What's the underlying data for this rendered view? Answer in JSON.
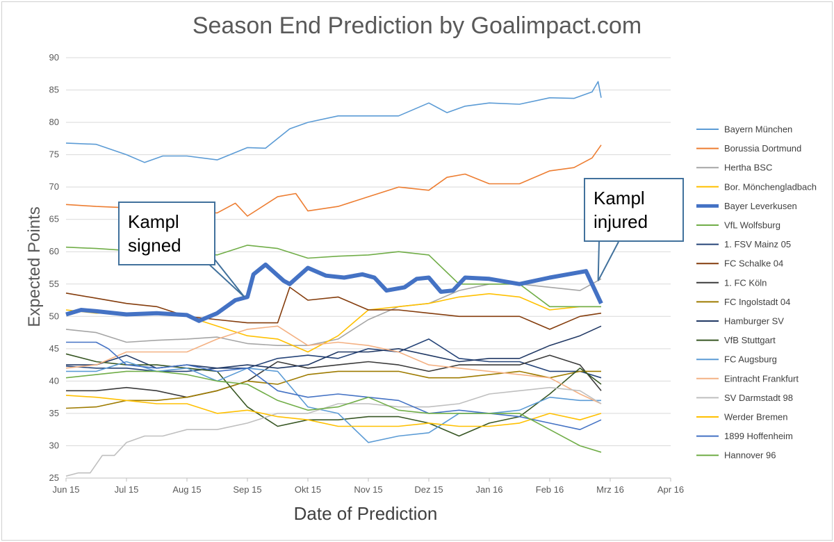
{
  "chart_data": {
    "type": "line",
    "title": "Season End Prediction by Goalimpact.com",
    "xlabel": "Date of Prediction",
    "ylabel": "Expected Points",
    "ylim": [
      25,
      90
    ],
    "yticks": [
      25,
      30,
      35,
      40,
      45,
      50,
      55,
      60,
      65,
      70,
      75,
      80,
      85,
      90
    ],
    "x_tick_labels": [
      "Jun 15",
      "Jul 15",
      "Aug 15",
      "Sep 15",
      "Okt 15",
      "Nov 15",
      "Dez 15",
      "Jan 16",
      "Feb 16",
      "Mrz 16",
      "Apr 16"
    ],
    "x_unit": "months since Jun 15",
    "grid": "horizontal",
    "legend_position": "right",
    "annotations": [
      {
        "text_line1": "Kampl",
        "text_line2": "signed",
        "points_to": [
          2.95,
          53
        ]
      },
      {
        "text_line1": "Kampl",
        "text_line2": "injured",
        "points_to": [
          8.8,
          55.5
        ]
      }
    ],
    "series": [
      {
        "name": "Bayern München",
        "color": "#5b9bd5",
        "width": 1.6,
        "x": [
          0,
          0.5,
          1,
          1.3,
          1.6,
          2,
          2.5,
          3,
          3.3,
          3.7,
          4,
          4.5,
          5,
          5.5,
          6,
          6.3,
          6.6,
          7,
          7.5,
          8,
          8.4,
          8.7,
          8.8,
          8.85
        ],
        "y": [
          76.8,
          76.6,
          75.0,
          73.8,
          74.8,
          74.8,
          74.2,
          76.1,
          76.0,
          79.0,
          80.0,
          81.0,
          81.0,
          81.0,
          83.0,
          81.5,
          82.5,
          83.0,
          82.8,
          83.8,
          83.7,
          84.7,
          86.3,
          83.8
        ]
      },
      {
        "name": "Borussia Dortmund",
        "color": "#ed7d31",
        "width": 1.6,
        "x": [
          0,
          0.5,
          1,
          1.5,
          2,
          2.5,
          2.8,
          3,
          3.5,
          3.8,
          4,
          4.5,
          5,
          5.5,
          6,
          6.3,
          6.6,
          7,
          7.5,
          8,
          8.4,
          8.7,
          8.85
        ],
        "y": [
          67.3,
          67.0,
          66.8,
          66.5,
          66.2,
          66.0,
          67.5,
          65.5,
          68.5,
          69.0,
          66.3,
          67.0,
          68.5,
          70.0,
          69.5,
          71.5,
          72.0,
          70.5,
          70.5,
          72.5,
          73.0,
          74.5,
          76.5
        ]
      },
      {
        "name": "Hertha BSC",
        "color": "#a5a5a5",
        "width": 1.6,
        "x": [
          0,
          0.5,
          1,
          1.5,
          2,
          2.5,
          3,
          3.5,
          4,
          4.5,
          5,
          5.5,
          6,
          6.5,
          7,
          7.5,
          8,
          8.5,
          8.85
        ],
        "y": [
          48.0,
          47.5,
          46.0,
          46.3,
          46.5,
          46.8,
          45.8,
          45.5,
          45.5,
          46.5,
          49.5,
          51.5,
          52.0,
          54.0,
          55.0,
          55.0,
          54.5,
          54.0,
          55.8
        ]
      },
      {
        "name": "Bor. Mönchengladbach",
        "color": "#ffc000",
        "width": 1.6,
        "x": [
          0,
          0.5,
          1,
          1.5,
          2,
          2.5,
          3,
          3.5,
          4,
          4.5,
          5,
          5.5,
          6,
          6.5,
          7,
          7.5,
          8,
          8.5,
          8.85
        ],
        "y": [
          51.0,
          50.5,
          50.5,
          50.5,
          50.0,
          48.5,
          47.0,
          46.5,
          44.5,
          47.0,
          51.0,
          51.5,
          52.0,
          53.0,
          53.5,
          53.0,
          51.0,
          51.5,
          51.5
        ]
      },
      {
        "name": "Bayer Leverkusen",
        "color": "#4472c4",
        "width": 6,
        "x": [
          0,
          0.25,
          0.5,
          1,
          1.5,
          2,
          2.2,
          2.5,
          2.8,
          3,
          3.1,
          3.3,
          3.6,
          3.7,
          4,
          4.3,
          4.6,
          4.9,
          5.1,
          5.3,
          5.6,
          5.8,
          6,
          6.2,
          6.4,
          6.6,
          7,
          7.5,
          8,
          8.3,
          8.6,
          8.85
        ],
        "y": [
          50.3,
          51.0,
          50.8,
          50.3,
          50.5,
          50.2,
          49.3,
          50.5,
          52.5,
          53.0,
          56.5,
          58.0,
          55.5,
          55.0,
          57.5,
          56.3,
          56.0,
          56.5,
          56.0,
          54.0,
          54.5,
          55.8,
          56.0,
          53.8,
          54.0,
          56.0,
          55.8,
          55.0,
          56.0,
          56.5,
          57.0,
          52.0
        ]
      },
      {
        "name": "VfL Wolfsburg",
        "color": "#70ad47",
        "width": 1.6,
        "x": [
          0,
          0.5,
          1,
          1.5,
          2,
          2.5,
          3,
          3.5,
          4,
          4.5,
          5,
          5.5,
          6,
          6.5,
          7,
          7.5,
          8,
          8.5,
          8.85
        ],
        "y": [
          60.7,
          60.5,
          60.2,
          60.0,
          60.0,
          59.5,
          61.0,
          60.5,
          59.0,
          59.3,
          59.5,
          60.0,
          59.5,
          55.0,
          55.0,
          55.0,
          51.5,
          51.5,
          51.5
        ]
      },
      {
        "name": "1. FSV Mainz 05",
        "color": "#264478",
        "width": 1.6,
        "x": [
          0,
          0.5,
          1,
          1.5,
          2,
          2.5,
          3,
          3.5,
          4,
          4.5,
          5,
          5.5,
          6,
          6.5,
          7,
          7.5,
          8,
          8.5,
          8.85
        ],
        "y": [
          42.3,
          42.0,
          42.0,
          41.5,
          41.5,
          42.0,
          42.0,
          43.5,
          44.0,
          43.5,
          45.0,
          44.5,
          46.5,
          43.5,
          43.0,
          43.0,
          41.5,
          41.5,
          40.5
        ]
      },
      {
        "name": "FC Schalke 04",
        "color": "#843c0c",
        "width": 1.6,
        "x": [
          0,
          0.5,
          1,
          1.5,
          2,
          2.5,
          3,
          3.5,
          3.7,
          4,
          4.5,
          5,
          5.5,
          6,
          6.5,
          7,
          7.5,
          8,
          8.5,
          8.85
        ],
        "y": [
          53.6,
          52.8,
          52.0,
          51.5,
          50.0,
          49.5,
          49.0,
          49.0,
          54.5,
          52.5,
          53.0,
          51.0,
          51.0,
          50.5,
          50.0,
          50.0,
          50.0,
          48.0,
          50.0,
          50.5
        ]
      },
      {
        "name": "1. FC Köln",
        "color": "#3a3a3a",
        "width": 1.6,
        "x": [
          0,
          0.5,
          1,
          1.5,
          2,
          2.5,
          3,
          3.5,
          4,
          4.5,
          5,
          5.5,
          6,
          6.5,
          7,
          7.5,
          8,
          8.5,
          8.85
        ],
        "y": [
          38.5,
          38.5,
          39.0,
          38.5,
          37.5,
          38.5,
          40.0,
          43.0,
          42.0,
          42.5,
          43.0,
          42.5,
          41.5,
          42.5,
          42.5,
          42.5,
          44.0,
          42.5,
          38.5
        ]
      },
      {
        "name": "FC Ingolstadt 04",
        "color": "#9e7b00",
        "width": 1.6,
        "x": [
          0,
          0.5,
          1,
          1.5,
          2,
          2.5,
          3,
          3.5,
          4,
          4.5,
          5,
          5.5,
          6,
          6.5,
          7,
          7.5,
          8,
          8.5,
          8.85
        ],
        "y": [
          35.8,
          36.0,
          37.0,
          37.0,
          37.5,
          38.5,
          40.0,
          39.5,
          41.0,
          41.5,
          41.5,
          41.5,
          40.5,
          40.5,
          41.0,
          41.5,
          40.5,
          41.5,
          41.5
        ]
      },
      {
        "name": "Hamburger SV",
        "color": "#203864",
        "width": 1.6,
        "x": [
          0,
          0.5,
          1,
          1.5,
          2,
          2.5,
          3,
          3.5,
          4,
          4.5,
          5,
          5.5,
          6,
          6.5,
          7,
          7.5,
          8,
          8.5,
          8.85
        ],
        "y": [
          42.5,
          42.5,
          44.0,
          42.0,
          42.5,
          42.0,
          42.5,
          42.0,
          42.5,
          44.5,
          44.5,
          45.0,
          44.0,
          43.0,
          43.5,
          43.5,
          45.5,
          47.0,
          48.5
        ]
      },
      {
        "name": "VfB Stuttgart",
        "color": "#375623",
        "width": 1.6,
        "x": [
          0,
          0.5,
          1,
          1.5,
          2,
          2.5,
          3,
          3.5,
          4,
          4.5,
          5,
          5.5,
          6,
          6.5,
          7,
          7.5,
          8,
          8.5,
          8.85
        ],
        "y": [
          44.2,
          43.0,
          42.5,
          42.5,
          42.0,
          41.5,
          36.0,
          33.0,
          34.0,
          34.0,
          34.5,
          34.5,
          33.5,
          31.5,
          33.5,
          34.5,
          38.0,
          42.0,
          39.5
        ]
      },
      {
        "name": "FC Augsburg",
        "color": "#5b9bd5",
        "width": 1.6,
        "x": [
          0,
          0.5,
          1,
          1.5,
          2,
          2.5,
          3,
          3.5,
          4,
          4.5,
          5,
          5.5,
          6,
          6.5,
          7,
          7.5,
          8,
          8.5,
          8.85
        ],
        "y": [
          41.5,
          41.5,
          43.0,
          41.5,
          42.0,
          40.0,
          42.0,
          41.5,
          36.0,
          35.0,
          30.5,
          31.5,
          32.0,
          35.0,
          35.0,
          35.5,
          37.5,
          37.0,
          37.0
        ]
      },
      {
        "name": "Eintracht Frankfurt",
        "color": "#f4b183",
        "width": 1.6,
        "x": [
          0,
          0.5,
          1,
          1.5,
          2,
          2.5,
          3,
          3.5,
          4,
          4.5,
          5,
          5.5,
          6,
          6.5,
          7,
          7.5,
          8,
          8.5,
          8.85
        ],
        "y": [
          42.0,
          42.5,
          44.5,
          44.5,
          44.5,
          46.5,
          48.0,
          48.5,
          45.5,
          46.0,
          45.5,
          44.5,
          42.5,
          42.0,
          41.5,
          41.0,
          40.5,
          38.0,
          36.5
        ]
      },
      {
        "name": "SV Darmstadt 98",
        "color": "#bfbfbf",
        "width": 1.6,
        "x": [
          0,
          0.2,
          0.4,
          0.6,
          0.8,
          1,
          1.3,
          1.6,
          2,
          2.5,
          3,
          3.5,
          4,
          4.5,
          5,
          5.5,
          6,
          6.5,
          7,
          7.5,
          8,
          8.5,
          8.85
        ],
        "y": [
          25.3,
          25.8,
          25.8,
          28.5,
          28.5,
          30.5,
          31.5,
          31.5,
          32.5,
          32.5,
          33.5,
          35.0,
          35.0,
          36.5,
          36.5,
          36.0,
          36.0,
          36.5,
          38.0,
          38.5,
          39.0,
          38.5,
          36.5
        ]
      },
      {
        "name": "Werder Bremen",
        "color": "#ffc000",
        "width": 1.6,
        "x": [
          0,
          0.5,
          1,
          1.5,
          2,
          2.5,
          3,
          3.5,
          4,
          4.5,
          5,
          5.5,
          6,
          6.5,
          7,
          7.5,
          8,
          8.5,
          8.85
        ],
        "y": [
          37.8,
          37.5,
          37.0,
          36.5,
          36.5,
          35.0,
          35.5,
          34.5,
          34.0,
          33.0,
          33.0,
          33.0,
          33.5,
          33.0,
          33.0,
          33.5,
          35.0,
          34.0,
          35.0
        ]
      },
      {
        "name": "1899 Hoffenheim",
        "color": "#4472c4",
        "width": 1.6,
        "x": [
          0,
          0.5,
          0.7,
          1,
          1.5,
          2,
          2.5,
          3,
          3.5,
          4,
          4.5,
          5,
          5.5,
          6,
          6.5,
          7,
          7.5,
          8,
          8.5,
          8.85
        ],
        "y": [
          46.0,
          46.0,
          45.0,
          42.5,
          42.0,
          42.5,
          41.5,
          42.0,
          38.5,
          37.5,
          38.0,
          37.5,
          37.0,
          35.0,
          35.5,
          35.0,
          34.5,
          33.5,
          32.5,
          34.0
        ]
      },
      {
        "name": "Hannover 96",
        "color": "#70ad47",
        "width": 1.6,
        "x": [
          0,
          0.5,
          1,
          1.5,
          2,
          2.5,
          3,
          3.5,
          4,
          4.5,
          5,
          5.5,
          6,
          6.5,
          7,
          7.5,
          8,
          8.5,
          8.85
        ],
        "y": [
          40.5,
          41.0,
          41.5,
          41.5,
          41.0,
          40.0,
          39.5,
          37.0,
          35.5,
          36.0,
          37.5,
          35.5,
          35.0,
          35.0,
          35.0,
          35.0,
          32.5,
          30.0,
          29.0
        ]
      }
    ]
  }
}
